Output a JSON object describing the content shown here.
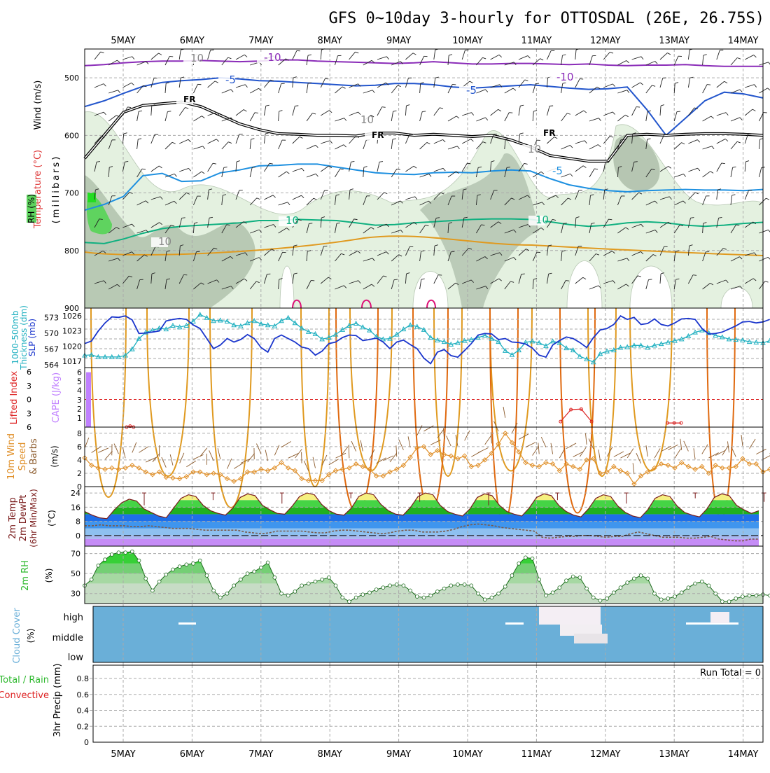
{
  "title": "GFS 0~10day 3-hourly for OTTOSDAL (26E, 26.75S)",
  "dates": [
    "5MAY",
    "6MAY",
    "7MAY",
    "8MAY",
    "9MAY",
    "10MAY",
    "11MAY",
    "12MAY",
    "13MAY",
    "14MAY"
  ],
  "colors": {
    "rh_dark": "#aabba6",
    "rh_light": "#e4f1e0",
    "rh_green": "#5fd35f",
    "purple": "#8a2bb8",
    "blue": "#2255cc",
    "cyan": "#1e90e0",
    "teal": "#10b080",
    "orange": "#e09a20",
    "darkorange": "#e06a10",
    "magenta": "#dd1177",
    "slp": "#1a35cc",
    "thick": "#20b0c0",
    "cape": "#c080ff",
    "li": "#dd2222",
    "wind": "#e0902a",
    "cloud": "#6aafd8",
    "rh2m": "#2db82d"
  },
  "chart_data": [
    {
      "type": "area",
      "panel": "upper-air",
      "ylabel_parts": [
        "RH (%)",
        "Temperature (°C)",
        "Wind (m/s)"
      ],
      "yunit": "(millibars)",
      "ylim": [
        900,
        450
      ],
      "yticks": [
        500,
        600,
        700,
        800,
        900
      ],
      "contour_labels": [
        "-10",
        "-10",
        "-5",
        "-5",
        "FR",
        "FR",
        "FR",
        "-5",
        "10",
        "10",
        "10",
        "10",
        "10",
        "10"
      ],
      "isotherms": [
        {
          "name": "-10",
          "color": "purple",
          "p": [
            479,
            477,
            474,
            472,
            471,
            471,
            470,
            471,
            472,
            471,
            469,
            469,
            471,
            472,
            473,
            474,
            475,
            474,
            472,
            474,
            476,
            476,
            475,
            475,
            476,
            477,
            476,
            478,
            479,
            478,
            478,
            477,
            479,
            480,
            480,
            480
          ]
        },
        {
          "name": "-5",
          "color": "blue",
          "p": [
            550,
            540,
            527,
            515,
            508,
            505,
            503,
            500,
            502,
            505,
            506,
            508,
            510,
            512,
            514,
            513,
            510,
            510,
            512,
            516,
            518,
            516,
            514,
            512,
            515,
            518,
            520,
            519,
            516,
            555,
            600,
            570,
            540,
            525,
            528,
            535
          ]
        },
        {
          "name": "FR",
          "color": "black",
          "p": [
            640,
            600,
            560,
            548,
            545,
            542,
            550,
            565,
            580,
            590,
            597,
            598,
            600,
            600,
            601,
            596,
            596,
            600,
            598,
            600,
            602,
            600,
            608,
            620,
            635,
            640,
            645,
            645,
            600,
            598,
            600,
            598,
            597,
            597,
            598,
            600
          ]
        },
        {
          "name": "5",
          "color": "cyan",
          "p": [
            730,
            720,
            706,
            670,
            666,
            680,
            679,
            665,
            660,
            653,
            652,
            650,
            650,
            655,
            660,
            665,
            667,
            668,
            665,
            664,
            665,
            662,
            660,
            662,
            675,
            686,
            692,
            696,
            698,
            696,
            695,
            694,
            695,
            695,
            696,
            694
          ]
        },
        {
          "name": "10",
          "color": "teal",
          "p": [
            786,
            788,
            780,
            770,
            762,
            758,
            756,
            754,
            752,
            748,
            748,
            746,
            747,
            748,
            752,
            756,
            755,
            752,
            750,
            748,
            746,
            745,
            745,
            746,
            750,
            755,
            758,
            756,
            752,
            750,
            752,
            756,
            758,
            756,
            753,
            751
          ]
        }
      ]
    },
    {
      "type": "line",
      "panel": "slp-thickness",
      "series": [
        {
          "name": "SLP (mb)",
          "color": "slp",
          "yticks": [
            1017,
            1020,
            1023,
            1026
          ],
          "values": [
            1020.5,
            1021,
            1023,
            1024.6,
            1025.8,
            1025.7,
            1026,
            1025.2,
            1022.5,
            1022.6,
            1022.8,
            1023,
            1025,
            1025.3,
            1025.5,
            1025.3,
            1024.2,
            1023.5,
            1021.5,
            1019.5,
            1020.2,
            1021.5,
            1020.8,
            1021.3,
            1022.3,
            1021.5,
            1019.7,
            1018.8,
            1021.5,
            1022.2,
            1021.5,
            1020.8,
            1019.8,
            1019.5,
            1018.2,
            1019,
            1020.5,
            1020.8,
            1021.7,
            1022.2,
            1022.1,
            1021.1,
            1021.3,
            1021.6,
            1020.8,
            1019.5,
            1020.8,
            1021.2,
            1020.3,
            1019.5,
            1017.6,
            1016.5,
            1018.8,
            1019.3,
            1018.1,
            1017.8,
            1019.1,
            1020.5,
            1022.2,
            1022.5,
            1022.4,
            1021.3,
            1021.5,
            1020.8,
            1020.7,
            1020.4,
            1019.6,
            1018.2,
            1017.8,
            1020.2,
            1021.1,
            1021.8,
            1021.5,
            1020.7,
            1019.7,
            1021.7,
            1023.2,
            1023.5,
            1024.3,
            1026,
            1025.3,
            1025.7,
            1024.3,
            1024.5,
            1025.4,
            1024.3,
            1024,
            1024.6,
            1025.4,
            1025.5,
            1025.3,
            1023.5,
            1022.4,
            1022.5,
            1022.8,
            1023.4,
            1024,
            1024.8,
            1024.9,
            1024.6,
            1024.8,
            1025.3
          ]
        },
        {
          "name": "1000-500mb Thickness (dm)",
          "color": "thick",
          "yticks": [
            564,
            567,
            570,
            573
          ],
          "values": [
            565.8,
            565.9,
            565.5,
            565.5,
            565.5,
            565.5,
            565.8,
            567,
            569,
            570.2,
            570.6,
            571,
            570.8,
            571.5,
            571.2,
            571.5,
            572.3,
            573.6,
            573,
            572.4,
            572.5,
            572.3,
            571.6,
            571.4,
            572,
            572.4,
            571.8,
            571.6,
            571.4,
            572.4,
            573,
            572,
            571,
            570.3,
            569.9,
            568.9,
            569.2,
            569.8,
            570.7,
            571.5,
            571.9,
            571.2,
            570.6,
            569.4,
            568.9,
            569,
            569.8,
            570.8,
            571.6,
            571.3,
            570.7,
            569.2,
            568.7,
            568.4,
            567.9,
            568.2,
            568.6,
            568.8,
            569.2,
            569.6,
            569,
            568.4,
            566.7,
            565.9,
            566.8,
            568.3,
            568.5,
            568.2,
            567.6,
            568.5,
            568.2,
            567.2,
            566.8,
            565.6,
            565.1,
            564.5,
            566.1,
            566.6,
            566.8,
            567.3,
            567.4,
            567.7,
            567.7,
            567.3,
            567.7,
            568,
            568.3,
            568.6,
            568.9,
            569.5,
            570.2,
            570.6,
            570.1,
            569.6,
            569.3,
            568.9,
            568.8,
            568.7,
            568.4,
            568.3,
            568.2,
            568.6
          ]
        }
      ]
    },
    {
      "type": "bar",
      "panel": "cape-li",
      "ylabel_parts": [
        "CAPE (J/kg)",
        "Lifted Index"
      ],
      "cape_ticks": [
        1,
        2,
        3,
        4,
        5,
        6
      ],
      "li_ticks": [
        -6,
        -3,
        0,
        3,
        6
      ],
      "cape_bars": [
        {
          "t": 0,
          "value": 6
        }
      ],
      "li_segments": [
        {
          "t": [
            0.05,
            0.1,
            0.15
          ],
          "values": [
            6,
            5.8,
            6
          ]
        },
        {
          "t": [
            6.35,
            6.5,
            6.65,
            6.8
          ],
          "values": [
            4.8,
            2.2,
            2.1,
            4.8
          ]
        },
        {
          "t": [
            7.9,
            8.0,
            8.1
          ],
          "values": [
            5.1,
            5.1,
            5.1
          ]
        }
      ],
      "zero_line": 0
    },
    {
      "type": "line",
      "panel": "wind10m",
      "ylabel_parts": [
        "10m Wind",
        "Speed",
        "& Barbs",
        "(m/s)"
      ],
      "yticks": [
        0,
        2,
        4,
        6,
        8
      ],
      "values": [
        4.3,
        3.2,
        2.8,
        2.6,
        2.8,
        2.6,
        2.8,
        3.2,
        2.8,
        2.2,
        1.8,
        2.2,
        1.4,
        1.3,
        1.2,
        1.5,
        2.2,
        2.2,
        1.8,
        2.0,
        1.8,
        1.2,
        0.8,
        1.2,
        2.2,
        2.2,
        2.6,
        2.4,
        2.8,
        3.6,
        2.8,
        2.4,
        1.2,
        0.9,
        0.9,
        0.9,
        1.8,
        2.4,
        2.6,
        2.8,
        3.4,
        3.0,
        2.6,
        1.6,
        1.6,
        2.2,
        2.6,
        3.2,
        4.4,
        5.8,
        6.0,
        4.8,
        5.4,
        4.8,
        4.6,
        4.2,
        4.6,
        3.0,
        3.2,
        4.0,
        5.0,
        6.4,
        8.0,
        6.6,
        5.2,
        3.6,
        3.2,
        3.0,
        3.6,
        3.4,
        2.4,
        3.4,
        3.0,
        2.6,
        4.0,
        4.2,
        2.0,
        2.2,
        3.0,
        2.4,
        2.0,
        0.4,
        1.6,
        2.2,
        2.8,
        3.4,
        3.2,
        2.8,
        3.6,
        3.0,
        2.6,
        3.0,
        2.0,
        3.2,
        2.8,
        2.8,
        3.0,
        4.2,
        3.4,
        3.4,
        2.2,
        2.6
      ]
    },
    {
      "type": "area",
      "panel": "temp2m",
      "ylabel_parts": [
        "2m Temp",
        "2m DewPt",
        "(6hr Min/Max)",
        "(°C)"
      ],
      "yticks": [
        0,
        8,
        16,
        24
      ],
      "temp": [
        13.5,
        11.5,
        10.0,
        9.5,
        14.5,
        18.5,
        20.5,
        19.5,
        15.0,
        13.0,
        11.0,
        10.0,
        15.5,
        21.0,
        23.0,
        22.0,
        17.0,
        14.0,
        12.5,
        11.5,
        15.5,
        21.5,
        23.5,
        22.5,
        17.0,
        14.5,
        12.5,
        12.0,
        16.5,
        22.0,
        24.0,
        23.0,
        17.5,
        14.0,
        12.0,
        11.5,
        15.5,
        22.0,
        24.0,
        23.0,
        17.5,
        14.0,
        12.0,
        11.5,
        16.0,
        22.0,
        24.0,
        23.0,
        17.0,
        13.5,
        12.0,
        11.0,
        15.0,
        21.5,
        23.5,
        22.5,
        17.0,
        13.5,
        12.0,
        11.0,
        15.5,
        21.5,
        23.5,
        22.5,
        17.0,
        13.5,
        11.5,
        10.5,
        15.0,
        21.0,
        23.0,
        22.0,
        16.5,
        13.0,
        11.0,
        10.0,
        14.5,
        21.0,
        23.0,
        22.0,
        16.5,
        13.0,
        11.5,
        10.5,
        15.0,
        21.5,
        23.5,
        22.5,
        17.0,
        14.5,
        12.5,
        14.0
      ],
      "dewpt": [
        5.5,
        5.5,
        6.0,
        5.5,
        5.5,
        5.5,
        5.0,
        5.0,
        5.5,
        5.0,
        4.5,
        4.0,
        4.0,
        4.0,
        3.5,
        3.0,
        3.0,
        3.0,
        3.0,
        3.0,
        2.0,
        1.5,
        1.0,
        1.5,
        2.5,
        2.5,
        2.5,
        2.5,
        2.0,
        1.5,
        1.5,
        2.5,
        3.0,
        3.0,
        2.5,
        2.0,
        1.5,
        1.0,
        1.5,
        2.5,
        3.0,
        3.0,
        2.0,
        2.0,
        2.0,
        2.5,
        3.5,
        5.0,
        6.0,
        6.5,
        6.0,
        5.5,
        4.5,
        4.0,
        3.5,
        3.0,
        2.5,
        -1.0,
        -1.5,
        -1.0,
        -0.5,
        -0.5,
        0.0,
        0.0,
        -0.5,
        -1.0,
        -0.5,
        -0.5,
        1.0,
        2.0,
        1.0,
        0.0,
        -1.0,
        -1.0,
        -1.0,
        -1.5,
        -1.5,
        -1.0,
        -0.5,
        -2.0,
        -2.5,
        -3.0,
        -3.0,
        -2.0,
        -2.0
      ]
    },
    {
      "type": "area",
      "panel": "rh2m",
      "ylabel_parts": [
        "2m RH",
        "(%)"
      ],
      "yticks": [
        30,
        50,
        70
      ],
      "values": [
        38,
        44,
        58,
        64,
        69,
        71,
        71,
        72,
        63,
        45,
        33,
        42,
        49,
        54,
        57,
        59,
        60,
        63,
        48,
        33,
        26,
        30,
        38,
        44,
        50,
        52,
        56,
        61,
        46,
        30,
        28,
        32,
        38,
        40,
        42,
        44,
        46,
        38,
        26,
        22,
        26,
        29,
        31,
        34,
        36,
        38,
        39,
        38,
        33,
        27,
        26,
        28,
        32,
        35,
        38,
        39,
        39,
        38,
        30,
        24,
        26,
        30,
        37,
        48,
        60,
        66,
        65,
        44,
        28,
        31,
        36,
        43,
        47,
        46,
        35,
        26,
        23,
        25,
        31,
        36,
        41,
        45,
        48,
        45,
        30,
        24,
        25,
        27,
        31,
        36,
        40,
        42,
        38,
        30,
        22,
        22,
        25,
        27,
        28,
        28,
        29,
        28
      ]
    },
    {
      "type": "heatmap",
      "panel": "cloud",
      "ylabel_parts": [
        "Cloud Cover",
        "(%)"
      ],
      "yticks": [
        "high",
        "middle",
        "low"
      ]
    },
    {
      "type": "bar",
      "panel": "precip",
      "ylabel_parts": [
        "Total / Rain",
        "Convective",
        "3hr Precip (mm)"
      ],
      "yticks": [
        0,
        0.2,
        0.4,
        0.6,
        0.8
      ],
      "annotation": "Run Total = 0",
      "values": []
    }
  ]
}
